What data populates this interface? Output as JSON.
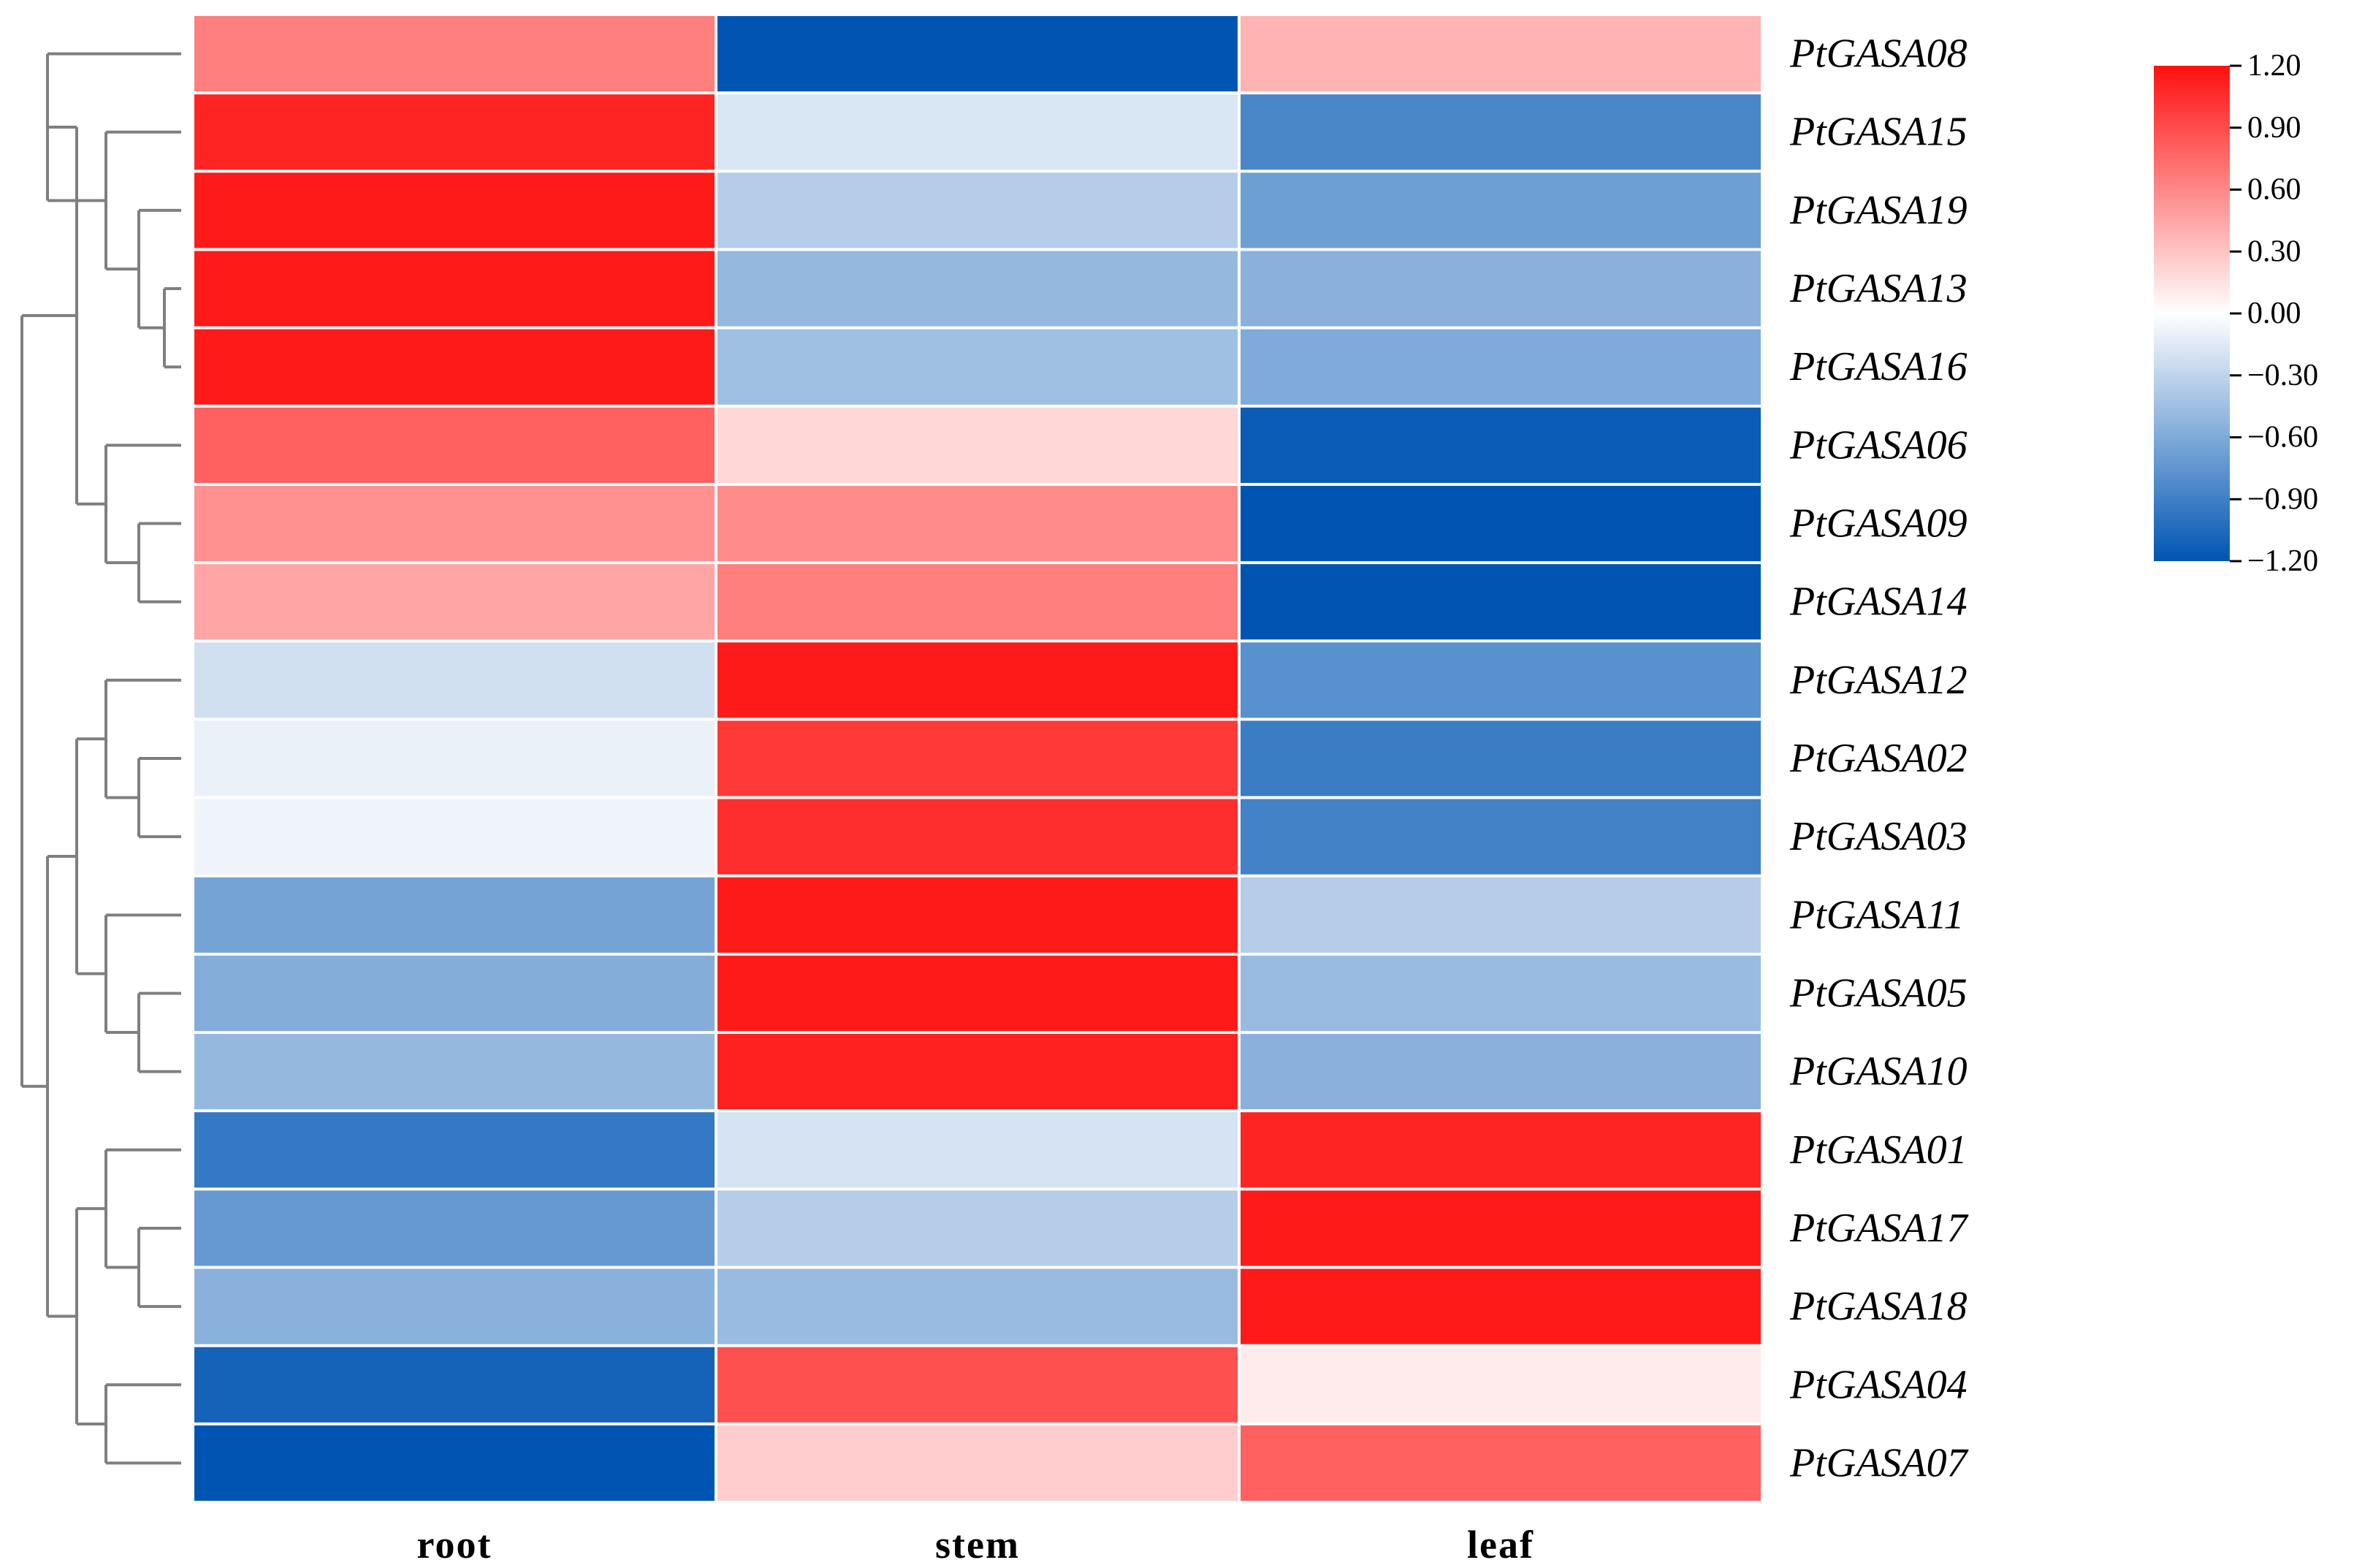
{
  "chart_data": {
    "type": "heatmap",
    "title": "",
    "columns": [
      "root",
      "stem",
      "leaf"
    ],
    "rows": [
      "PtGASA08",
      "PtGASA15",
      "PtGASA19",
      "PtGASA13",
      "PtGASA16",
      "PtGASA06",
      "PtGASA09",
      "PtGASA14",
      "PtGASA12",
      "PtGASA02",
      "PtGASA03",
      "PtGASA11",
      "PtGASA05",
      "PtGASA10",
      "PtGASA01",
      "PtGASA17",
      "PtGASA18",
      "PtGASA04",
      "PtGASA07"
    ],
    "values": [
      [
        0.65,
        -1.2,
        0.38
      ],
      [
        1.1,
        -0.18,
        -0.85
      ],
      [
        1.15,
        -0.35,
        -0.68
      ],
      [
        1.15,
        -0.5,
        -0.55
      ],
      [
        1.15,
        -0.45,
        -0.6
      ],
      [
        0.8,
        0.2,
        -1.15
      ],
      [
        0.55,
        0.58,
        -1.2
      ],
      [
        0.45,
        0.65,
        -1.2
      ],
      [
        -0.22,
        1.15,
        -0.78
      ],
      [
        -0.1,
        1.0,
        -0.92
      ],
      [
        -0.08,
        1.05,
        -0.88
      ],
      [
        -0.65,
        1.15,
        -0.35
      ],
      [
        -0.58,
        1.15,
        -0.48
      ],
      [
        -0.5,
        1.12,
        -0.55
      ],
      [
        -0.95,
        -0.2,
        1.1
      ],
      [
        -0.72,
        -0.35,
        1.15
      ],
      [
        -0.55,
        -0.48,
        1.15
      ],
      [
        -1.1,
        0.88,
        0.1
      ],
      [
        -1.2,
        0.25,
        0.8
      ]
    ],
    "color_scale": {
      "min": -1.2,
      "max": 1.2,
      "low_color": "#0055b3",
      "mid_color": "#ffffff",
      "high_color": "#ff1010",
      "ticks": [
        "1.20",
        "0.90",
        "0.60",
        "0.30",
        "0.00",
        "−0.30",
        "−0.60",
        "−0.90",
        "−1.20"
      ]
    },
    "dendrogram": {
      "leaf_order": [
        0,
        1,
        2,
        3,
        4,
        5,
        6,
        7,
        8,
        9,
        10,
        11,
        12,
        13,
        14,
        15,
        16,
        17,
        18
      ],
      "merges": [
        [
          3,
          4
        ],
        [
          2,
          "m0"
        ],
        [
          1,
          "m1"
        ],
        [
          0,
          "m2"
        ],
        [
          6,
          7
        ],
        [
          5,
          "m4"
        ],
        [
          "m3",
          "m5"
        ],
        [
          9,
          10
        ],
        [
          8,
          "m7"
        ],
        [
          12,
          13
        ],
        [
          11,
          "m9"
        ],
        [
          "m8",
          "m10"
        ],
        [
          15,
          16
        ],
        [
          14,
          "m12"
        ],
        [
          17,
          18
        ],
        [
          "m13",
          "m14"
        ],
        [
          "m11",
          "m15"
        ],
        [
          "m6",
          "m16"
        ]
      ],
      "line_color": "#7f7f7f"
    }
  }
}
